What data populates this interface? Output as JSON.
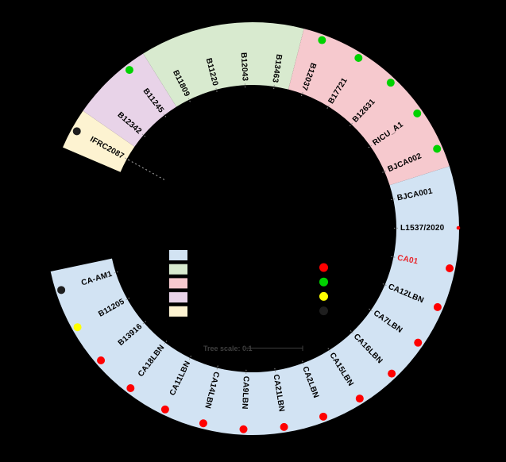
{
  "figure": {
    "background": "#000000",
    "tree_scale": {
      "label": "Tree scale: 0.1",
      "color": "#3f3f3f"
    },
    "groups": [
      {
        "id": "blue",
        "color": "#d2e3f3"
      },
      {
        "id": "green",
        "color": "#d8eacf"
      },
      {
        "id": "pink",
        "color": "#f6c9ce"
      },
      {
        "id": "purple",
        "color": "#e8d3e8"
      },
      {
        "id": "cream",
        "color": "#fdf3d1"
      }
    ],
    "dot_colors": {
      "red": "#ff0000",
      "green": "#00d200",
      "yellow": "#ffff00",
      "black": "#1e1e1e"
    },
    "dot_legend_order": [
      "red",
      "green",
      "yellow",
      "black"
    ],
    "leaves": [
      {
        "label": "IFRC2087",
        "group": "cream",
        "dot": "black"
      },
      {
        "label": "B12342",
        "group": "purple",
        "dot": null
      },
      {
        "label": "B11245",
        "group": "purple",
        "dot": "green"
      },
      {
        "label": "B11809",
        "group": "green",
        "dot": null
      },
      {
        "label": "B11220",
        "group": "green",
        "dot": null
      },
      {
        "label": "B12043",
        "group": "green",
        "dot": null
      },
      {
        "label": "B13463",
        "group": "green",
        "dot": null
      },
      {
        "label": "B12037",
        "group": "pink",
        "dot": "green"
      },
      {
        "label": "B17721",
        "group": "pink",
        "dot": "green"
      },
      {
        "label": "B12631",
        "group": "pink",
        "dot": "green"
      },
      {
        "label": "RICU_A1",
        "group": "pink",
        "dot": "green"
      },
      {
        "label": "BJCA002",
        "group": "pink",
        "dot": "green"
      },
      {
        "label": "BJCA001",
        "group": "blue",
        "dot": null
      },
      {
        "label": "L1537/2020",
        "group": "blue",
        "dot": "red",
        "dot_clipped": true
      },
      {
        "label": "CA01",
        "group": "blue",
        "dot": "red",
        "label_color": "#e8252a"
      },
      {
        "label": "CA12LBN",
        "group": "blue",
        "dot": "red"
      },
      {
        "label": "CA7LBN",
        "group": "blue",
        "dot": "red"
      },
      {
        "label": "CA16LBN",
        "group": "blue",
        "dot": "red"
      },
      {
        "label": "CA15LBN",
        "group": "blue",
        "dot": "red"
      },
      {
        "label": "CA2LBN",
        "group": "blue",
        "dot": "red"
      },
      {
        "label": "CA21LBN",
        "group": "blue",
        "dot": "red"
      },
      {
        "label": "CA9LBN",
        "group": "blue",
        "dot": "red"
      },
      {
        "label": "CA14LBN",
        "group": "blue",
        "dot": "red"
      },
      {
        "label": "CA11LBN",
        "group": "blue",
        "dot": "red"
      },
      {
        "label": "CA18LBN",
        "group": "blue",
        "dot": "red"
      },
      {
        "label": "B13916",
        "group": "blue",
        "dot": "red"
      },
      {
        "label": "B11205",
        "group": "blue",
        "dot": "yellow"
      },
      {
        "label": "CA-AM1",
        "group": "blue",
        "dot": "black"
      }
    ],
    "leaf_label_color_default": "#000000",
    "tick_color": "#969696",
    "connector_color": "#aaaaaa"
  }
}
